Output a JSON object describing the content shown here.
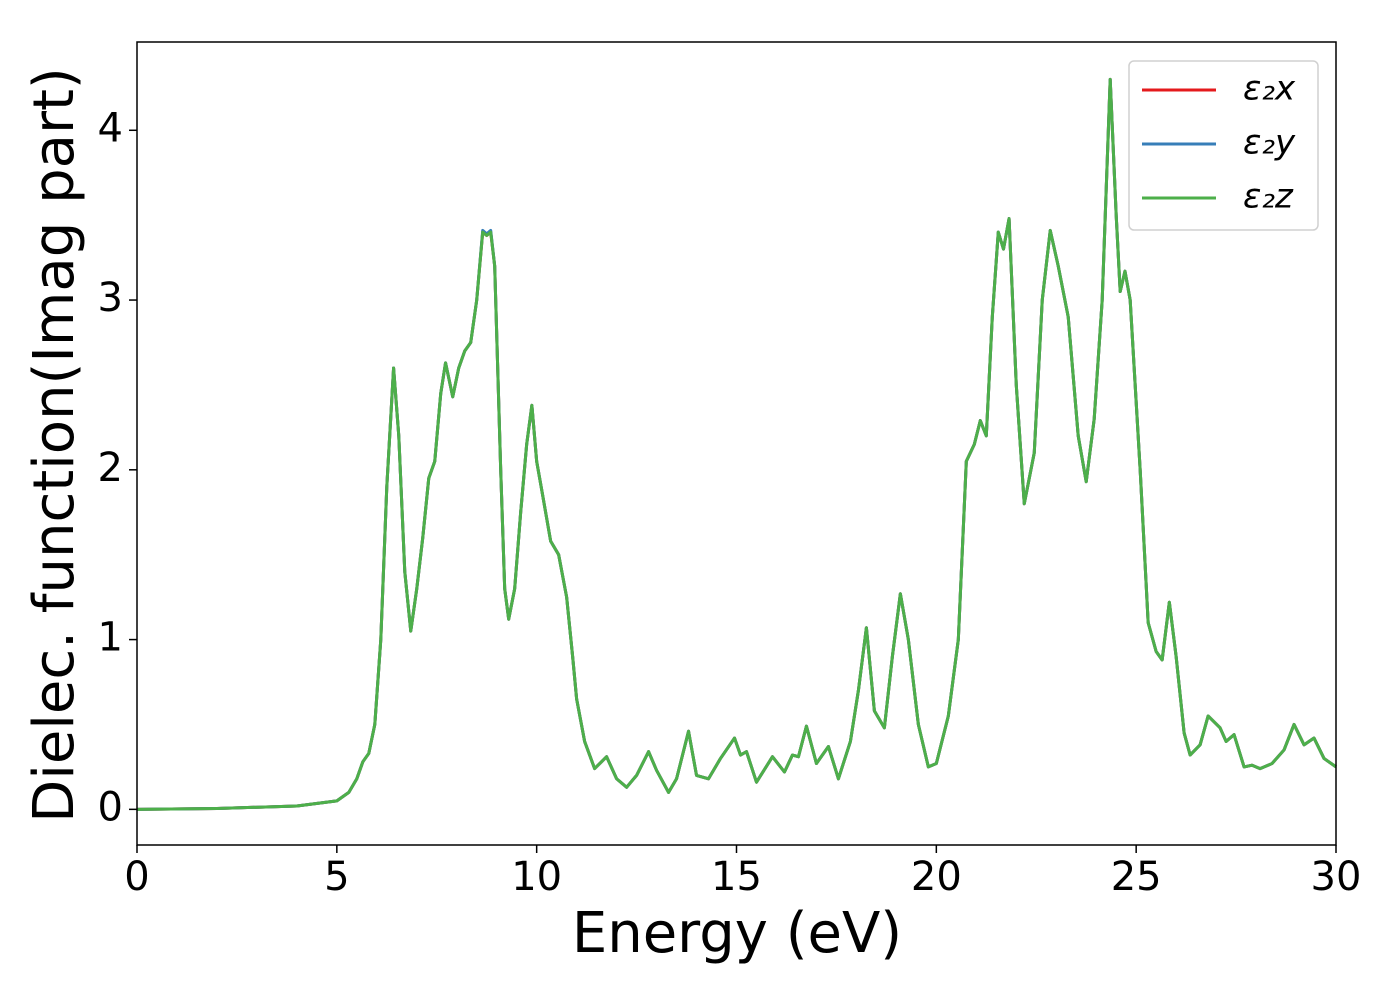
{
  "chart_data": {
    "type": "line",
    "xlabel": "Energy (eV)",
    "ylabel": "Dielec. function(Imag part)",
    "x": [
      0,
      2,
      4,
      5,
      5.3,
      5.5,
      5.65,
      5.8,
      5.95,
      6.1,
      6.25,
      6.42,
      6.55,
      6.7,
      6.85,
      7.0,
      7.15,
      7.3,
      7.45,
      7.6,
      7.72,
      7.9,
      8.05,
      8.2,
      8.35,
      8.5,
      8.65,
      8.75,
      8.85,
      8.95,
      9.1,
      9.2,
      9.3,
      9.45,
      9.6,
      9.75,
      9.88,
      10.0,
      10.15,
      10.35,
      10.55,
      10.75,
      10.9,
      11.0,
      11.2,
      11.45,
      11.75,
      12.0,
      12.25,
      12.5,
      12.8,
      13.0,
      13.3,
      13.5,
      13.8,
      14.0,
      14.3,
      14.6,
      14.95,
      15.1,
      15.25,
      15.5,
      15.9,
      16.2,
      16.4,
      16.55,
      16.75,
      17.0,
      17.3,
      17.55,
      17.85,
      18.05,
      18.25,
      18.45,
      18.7,
      18.9,
      19.1,
      19.3,
      19.55,
      19.8,
      20.0,
      20.3,
      20.55,
      20.75,
      20.95,
      21.1,
      21.25,
      21.4,
      21.55,
      21.68,
      21.82,
      22.0,
      22.2,
      22.45,
      22.65,
      22.85,
      23.05,
      23.3,
      23.55,
      23.75,
      23.95,
      24.15,
      24.35,
      24.5,
      24.6,
      24.72,
      24.85,
      25.1,
      25.3,
      25.5,
      25.65,
      25.83,
      26.0,
      26.2,
      26.35,
      26.6,
      26.8,
      27.1,
      27.25,
      27.45,
      27.7,
      27.9,
      28.1,
      28.4,
      28.7,
      28.95,
      29.2,
      29.45,
      29.7,
      30
    ],
    "series": [
      {
        "name": "ε₂x",
        "color": "#e41a1c",
        "values": [
          0,
          0.005,
          0.02,
          0.05,
          0.1,
          0.18,
          0.28,
          0.33,
          0.5,
          1.0,
          1.9,
          2.6,
          2.2,
          1.4,
          1.05,
          1.3,
          1.6,
          1.95,
          2.05,
          2.45,
          2.63,
          2.43,
          2.6,
          2.7,
          2.75,
          3.0,
          3.4,
          3.38,
          3.4,
          3.2,
          2.0,
          1.3,
          1.12,
          1.3,
          1.75,
          2.15,
          2.38,
          2.05,
          1.85,
          1.58,
          1.5,
          1.25,
          0.9,
          0.65,
          0.4,
          0.24,
          0.31,
          0.18,
          0.13,
          0.2,
          0.34,
          0.23,
          0.1,
          0.18,
          0.46,
          0.2,
          0.18,
          0.3,
          0.42,
          0.32,
          0.34,
          0.16,
          0.31,
          0.22,
          0.32,
          0.31,
          0.49,
          0.27,
          0.37,
          0.18,
          0.4,
          0.7,
          1.07,
          0.58,
          0.48,
          0.9,
          1.27,
          1.0,
          0.5,
          0.25,
          0.27,
          0.55,
          1.0,
          2.05,
          2.15,
          2.29,
          2.2,
          2.9,
          3.4,
          3.3,
          3.48,
          2.5,
          1.8,
          2.1,
          3.0,
          3.41,
          3.2,
          2.9,
          2.2,
          1.93,
          2.3,
          3.0,
          4.3,
          3.5,
          3.05,
          3.17,
          3.0,
          2.0,
          1.1,
          0.93,
          0.88,
          1.22,
          0.9,
          0.45,
          0.32,
          0.38,
          0.55,
          0.48,
          0.4,
          0.44,
          0.25,
          0.26,
          0.24,
          0.27,
          0.35,
          0.5,
          0.38,
          0.42,
          0.3,
          0.25
        ]
      },
      {
        "name": "ε₂y",
        "color": "#377eb8",
        "values": [
          0,
          0.005,
          0.02,
          0.05,
          0.1,
          0.18,
          0.28,
          0.33,
          0.5,
          1.0,
          1.9,
          2.6,
          2.2,
          1.4,
          1.05,
          1.3,
          1.6,
          1.95,
          2.05,
          2.45,
          2.63,
          2.43,
          2.6,
          2.7,
          2.75,
          3.0,
          3.41,
          3.39,
          3.41,
          3.2,
          2.0,
          1.3,
          1.12,
          1.3,
          1.75,
          2.15,
          2.38,
          2.05,
          1.85,
          1.58,
          1.5,
          1.25,
          0.9,
          0.65,
          0.4,
          0.24,
          0.31,
          0.18,
          0.13,
          0.2,
          0.34,
          0.23,
          0.1,
          0.18,
          0.46,
          0.2,
          0.18,
          0.3,
          0.42,
          0.32,
          0.34,
          0.16,
          0.31,
          0.22,
          0.32,
          0.31,
          0.49,
          0.27,
          0.37,
          0.18,
          0.4,
          0.7,
          1.07,
          0.58,
          0.48,
          0.9,
          1.27,
          1.0,
          0.5,
          0.25,
          0.27,
          0.55,
          1.0,
          2.05,
          2.15,
          2.29,
          2.2,
          2.9,
          3.4,
          3.3,
          3.48,
          2.5,
          1.8,
          2.1,
          3.0,
          3.41,
          3.2,
          2.9,
          2.2,
          1.93,
          2.3,
          3.0,
          4.3,
          3.5,
          3.05,
          3.17,
          3.0,
          2.0,
          1.1,
          0.93,
          0.88,
          1.22,
          0.9,
          0.45,
          0.32,
          0.38,
          0.55,
          0.48,
          0.4,
          0.44,
          0.25,
          0.26,
          0.24,
          0.27,
          0.35,
          0.5,
          0.38,
          0.42,
          0.3,
          0.25
        ]
      },
      {
        "name": "ε₂z",
        "color": "#4daf4a",
        "values": [
          0,
          0.005,
          0.02,
          0.05,
          0.1,
          0.18,
          0.28,
          0.33,
          0.5,
          1.0,
          1.9,
          2.6,
          2.2,
          1.4,
          1.05,
          1.3,
          1.6,
          1.95,
          2.05,
          2.45,
          2.63,
          2.43,
          2.6,
          2.7,
          2.75,
          3.0,
          3.4,
          3.38,
          3.4,
          3.2,
          2.0,
          1.3,
          1.12,
          1.3,
          1.75,
          2.15,
          2.38,
          2.05,
          1.85,
          1.58,
          1.5,
          1.25,
          0.9,
          0.65,
          0.4,
          0.24,
          0.31,
          0.18,
          0.13,
          0.2,
          0.34,
          0.23,
          0.1,
          0.18,
          0.46,
          0.2,
          0.18,
          0.3,
          0.42,
          0.32,
          0.34,
          0.16,
          0.31,
          0.22,
          0.32,
          0.31,
          0.49,
          0.27,
          0.37,
          0.18,
          0.4,
          0.7,
          1.07,
          0.58,
          0.48,
          0.9,
          1.27,
          1.0,
          0.5,
          0.25,
          0.27,
          0.55,
          1.0,
          2.05,
          2.15,
          2.29,
          2.2,
          2.9,
          3.4,
          3.3,
          3.48,
          2.5,
          1.8,
          2.1,
          3.0,
          3.41,
          3.2,
          2.9,
          2.2,
          1.93,
          2.3,
          3.0,
          4.3,
          3.5,
          3.05,
          3.17,
          3.0,
          2.0,
          1.1,
          0.93,
          0.88,
          1.22,
          0.9,
          0.45,
          0.32,
          0.38,
          0.55,
          0.48,
          0.4,
          0.44,
          0.25,
          0.26,
          0.24,
          0.27,
          0.35,
          0.5,
          0.38,
          0.42,
          0.3,
          0.25
        ]
      }
    ],
    "xlim": [
      0,
      30
    ],
    "xticks": [
      0,
      5,
      10,
      15,
      20,
      25,
      30
    ],
    "ylim": [
      -0.21,
      4.52
    ],
    "yticks": [
      0,
      1,
      2,
      3,
      4
    ],
    "legend": "upper right",
    "grid": false
  }
}
